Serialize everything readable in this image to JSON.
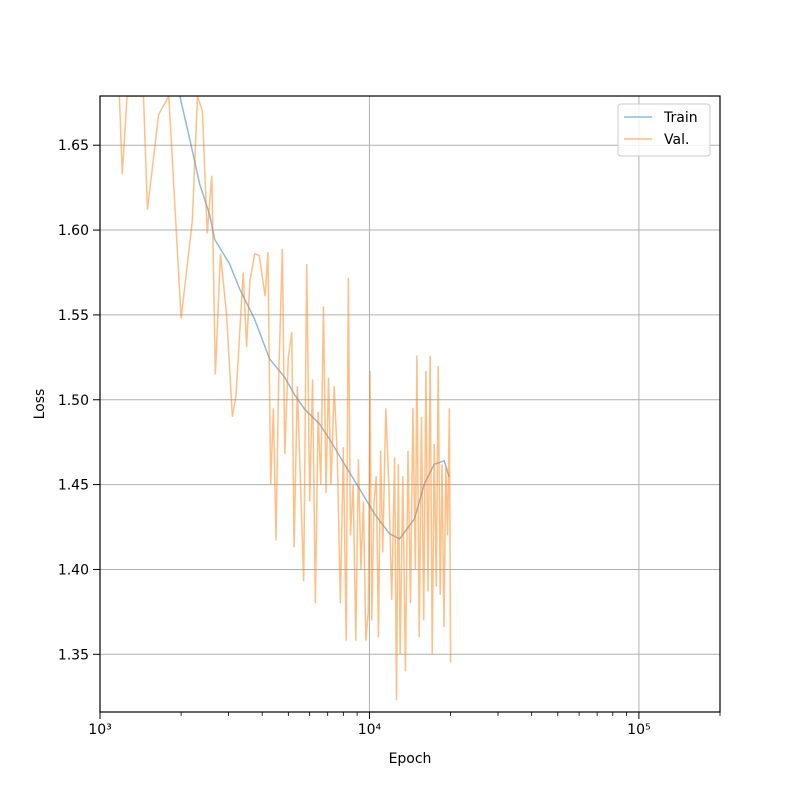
{
  "chart_data": {
    "type": "line",
    "x_label": "Epoch",
    "y_label": "Loss",
    "xscale": "log",
    "grid": true,
    "legend": "upper right",
    "alpha": 0.5,
    "xlim": [
      1000,
      200000
    ],
    "ylim": [
      1.316,
      1.679
    ],
    "xticks": [
      {
        "value": 1000,
        "label": "10³"
      },
      {
        "value": 10000,
        "label": "10⁴"
      },
      {
        "value": 100000,
        "label": "10⁵"
      }
    ],
    "xminorticks": [
      2000,
      3000,
      4000,
      5000,
      6000,
      7000,
      8000,
      9000,
      20000,
      30000,
      40000,
      50000,
      60000,
      70000,
      80000,
      90000,
      200000
    ],
    "yticks": [
      1.35,
      {
        "value": 1.4,
        "label": "1.40"
      },
      1.45,
      {
        "value": 1.5,
        "label": "1.50"
      },
      1.55,
      {
        "value": 1.6,
        "label": "1.60"
      },
      1.65
    ],
    "series": [
      {
        "name": "Train",
        "color": "#1f77b4",
        "x": [
          1978,
          2154,
          2345,
          2553,
          2664,
          3028,
          3300,
          3748,
          4260,
          4840,
          5275,
          5740,
          6530,
          7110,
          8080,
          9190,
          10450,
          11880,
          12930,
          14690,
          15990,
          17400,
          18950,
          19750
        ],
        "values": [
          1.679,
          1.6535,
          1.627,
          1.609,
          1.5945,
          1.58,
          1.5652,
          1.5475,
          1.524,
          1.5134,
          1.503,
          1.4945,
          1.4857,
          1.4768,
          1.462,
          1.4475,
          1.4327,
          1.421,
          1.418,
          1.4298,
          1.4504,
          1.462,
          1.464,
          1.4545
        ]
      },
      {
        "name": "Val.",
        "color": "#ff7f0e",
        "x": [
          1180,
          1210,
          1260,
          1450,
          1500,
          1650,
          1800,
          2000,
          2200,
          2300,
          2400,
          2500,
          2600,
          2680,
          2800,
          2950,
          3100,
          3200,
          3400,
          3500,
          3600,
          3750,
          3900,
          4100,
          4200,
          4300,
          4400,
          4500,
          4600,
          4750,
          4850,
          5000,
          5150,
          5250,
          5400,
          5550,
          5700,
          5850,
          6000,
          6150,
          6300,
          6450,
          6600,
          6750,
          6900,
          7050,
          7200,
          7400,
          7600,
          7800,
          8000,
          8200,
          8350,
          8500,
          8700,
          8900,
          9100,
          9300,
          9500,
          9700,
          9900,
          10050,
          10200,
          10400,
          10600,
          10800,
          11000,
          11200,
          11500,
          11800,
          12100,
          12400,
          12600,
          12800,
          13000,
          13300,
          13600,
          13900,
          14200,
          14500,
          14800,
          15000,
          15300,
          15600,
          15900,
          16200,
          16500,
          16800,
          17100,
          17400,
          17700,
          18000,
          18300,
          18600,
          18900,
          19200,
          19500,
          19800,
          20000
        ],
        "values": [
          1.679,
          1.633,
          1.679,
          1.679,
          1.612,
          1.668,
          1.679,
          1.548,
          1.605,
          1.679,
          1.67,
          1.598,
          1.632,
          1.515,
          1.586,
          1.55,
          1.49,
          1.503,
          1.575,
          1.531,
          1.57,
          1.586,
          1.585,
          1.561,
          1.587,
          1.45,
          1.495,
          1.417,
          1.51,
          1.589,
          1.468,
          1.525,
          1.54,
          1.413,
          1.508,
          1.45,
          1.393,
          1.58,
          1.44,
          1.512,
          1.38,
          1.493,
          1.45,
          1.555,
          1.445,
          1.513,
          1.45,
          1.508,
          1.466,
          1.38,
          1.472,
          1.358,
          1.572,
          1.42,
          1.45,
          1.358,
          1.465,
          1.4,
          1.44,
          1.358,
          1.375,
          1.517,
          1.37,
          1.44,
          1.455,
          1.36,
          1.47,
          1.41,
          1.495,
          1.45,
          1.382,
          1.466,
          1.323,
          1.462,
          1.35,
          1.455,
          1.34,
          1.47,
          1.38,
          1.495,
          1.4,
          1.526,
          1.36,
          1.49,
          1.37,
          1.517,
          1.387,
          1.526,
          1.35,
          1.474,
          1.39,
          1.52,
          1.385,
          1.462,
          1.366,
          1.46,
          1.42,
          1.495,
          1.345
        ]
      }
    ]
  }
}
